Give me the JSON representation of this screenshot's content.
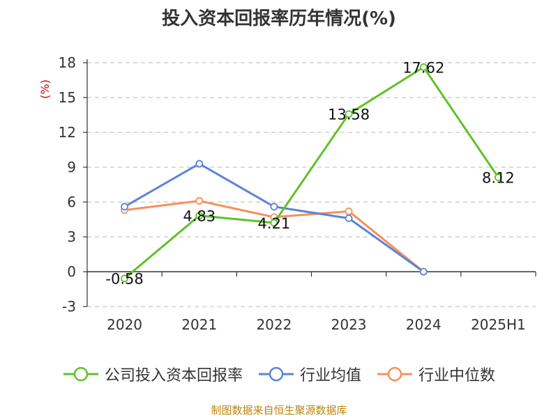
{
  "chart_data": {
    "type": "line",
    "title": "投入资本回报率历年情况(%)",
    "ylabel": "(%)",
    "categories": [
      "2020",
      "2021",
      "2022",
      "2023",
      "2024",
      "2025H1"
    ],
    "ylim": [
      -3,
      18
    ],
    "yticks": [
      -3,
      0,
      3,
      6,
      9,
      12,
      15,
      18
    ],
    "grid": true,
    "legend_position": "bottom",
    "series": [
      {
        "name": "公司投入资本回报率",
        "color": "#5ec228",
        "values": [
          -0.58,
          4.83,
          4.21,
          13.58,
          17.62,
          8.12
        ],
        "labels": [
          "-0.58",
          "4.83",
          "4.21",
          "13.58",
          "17.62",
          "8.12"
        ]
      },
      {
        "name": "行业均值",
        "color": "#5b83d8",
        "values": [
          5.6,
          9.3,
          5.6,
          4.6,
          0,
          null
        ]
      },
      {
        "name": "行业中位数",
        "color": "#f5905a",
        "values": [
          5.3,
          6.1,
          4.7,
          5.2,
          0,
          null
        ]
      }
    ]
  },
  "source": "制图数据来自恒生聚源数据库"
}
